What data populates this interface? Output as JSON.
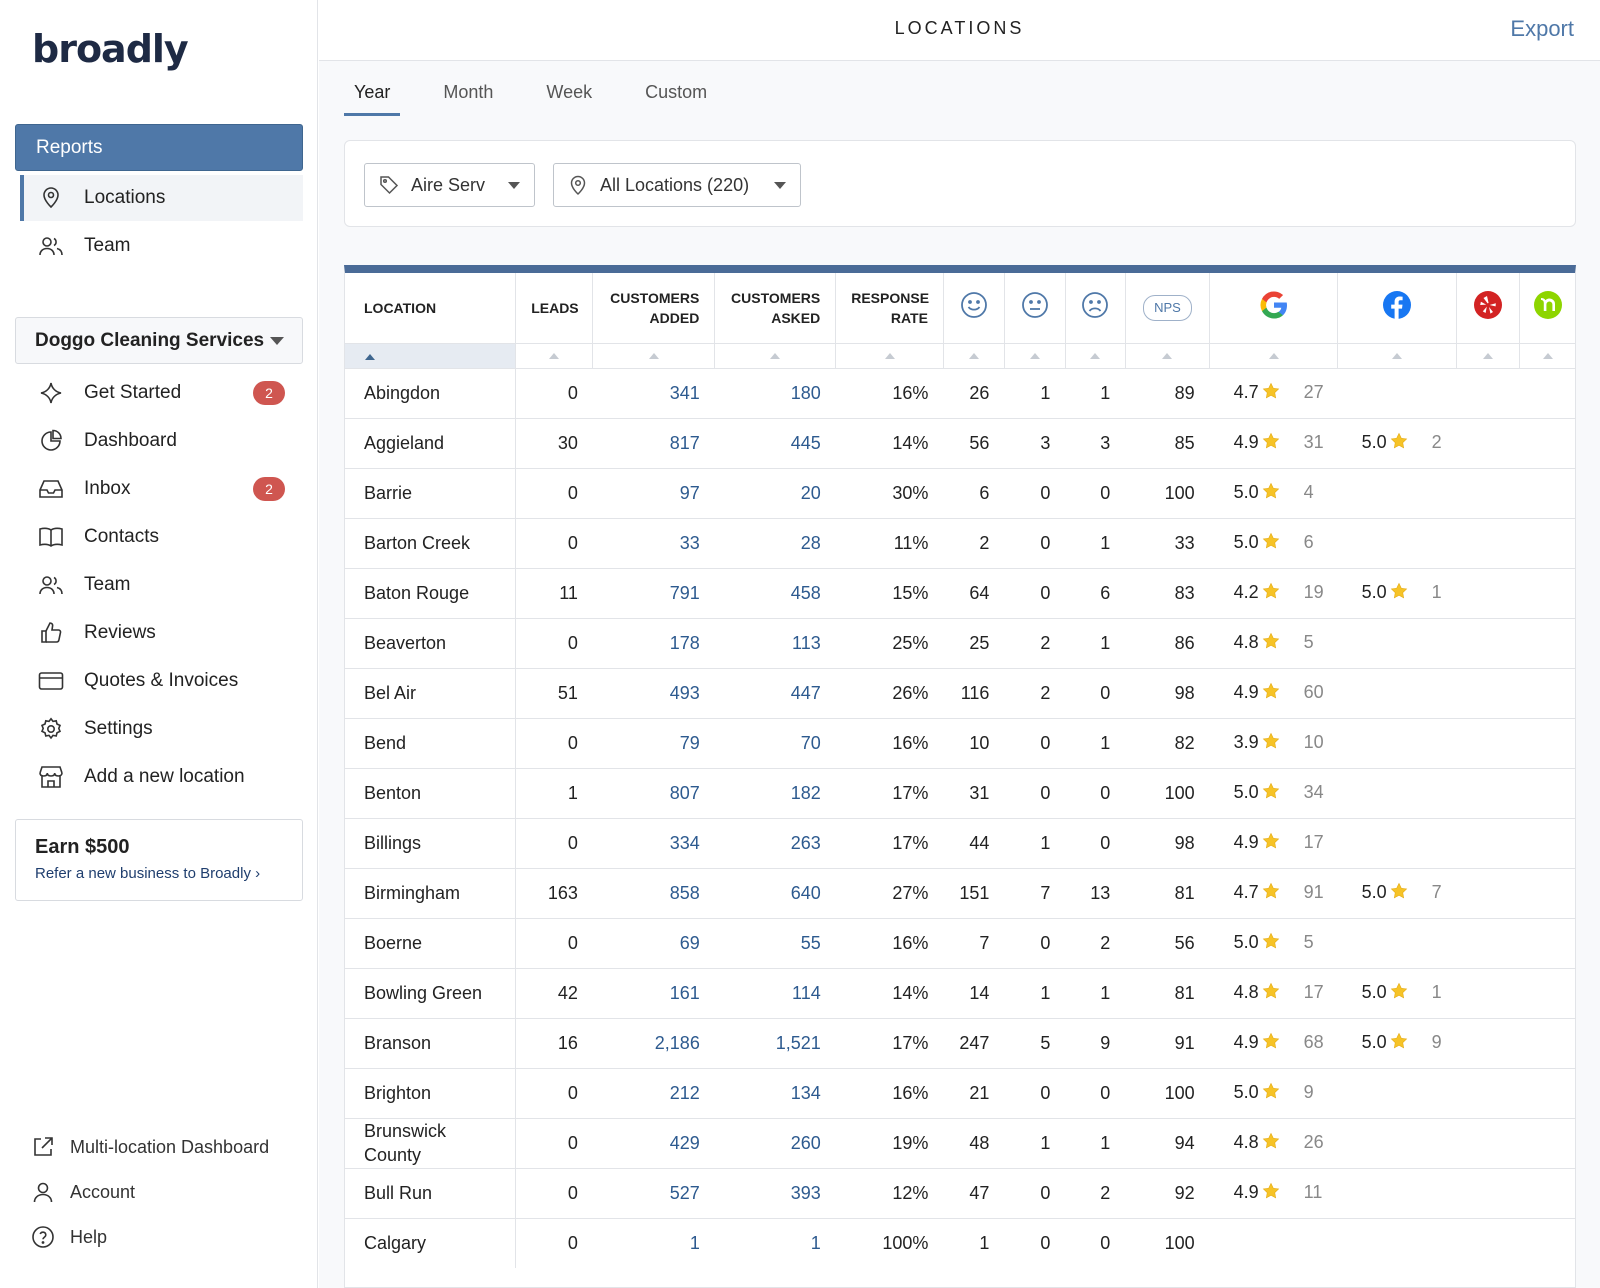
{
  "brand": {
    "name": "broadly"
  },
  "sidebar": {
    "reports_label": "Reports",
    "report_items": [
      {
        "label": "Locations",
        "icon": "location-pin-icon",
        "active": true
      },
      {
        "label": "Team",
        "icon": "team-icon",
        "active": false
      }
    ],
    "business_select": "Doggo Cleaning Services",
    "nav": [
      {
        "label": "Get Started",
        "icon": "sparkle-icon",
        "badge": "2"
      },
      {
        "label": "Dashboard",
        "icon": "pie-chart-icon",
        "badge": ""
      },
      {
        "label": "Inbox",
        "icon": "inbox-icon",
        "badge": "2"
      },
      {
        "label": "Contacts",
        "icon": "book-icon",
        "badge": ""
      },
      {
        "label": "Team",
        "icon": "team-icon",
        "badge": ""
      },
      {
        "label": "Reviews",
        "icon": "thumbs-up-icon",
        "badge": ""
      },
      {
        "label": "Quotes & Invoices",
        "icon": "credit-card-icon",
        "badge": ""
      },
      {
        "label": "Settings",
        "icon": "gear-icon",
        "badge": ""
      },
      {
        "label": "Add a new location",
        "icon": "store-icon",
        "badge": ""
      }
    ],
    "earn": {
      "title": "Earn $500",
      "link": "Refer a new business to Broadly"
    },
    "footer": [
      {
        "label": "Multi-location Dashboard",
        "icon": "external-link-icon"
      },
      {
        "label": "Account",
        "icon": "user-icon"
      },
      {
        "label": "Help",
        "icon": "help-icon"
      }
    ]
  },
  "header": {
    "title": "LOCATIONS",
    "export_label": "Export"
  },
  "tabs": [
    {
      "label": "Year",
      "active": true
    },
    {
      "label": "Month",
      "active": false
    },
    {
      "label": "Week",
      "active": false
    },
    {
      "label": "Custom",
      "active": false
    }
  ],
  "filters": {
    "brand": {
      "value": "Aire Serv",
      "icon": "tag-icon"
    },
    "locations": {
      "value": "All Locations (220)",
      "icon": "location-pin-icon"
    }
  },
  "table": {
    "columns": {
      "location": "LOCATION",
      "leads": "LEADS",
      "customers_added": "CUSTOMERS ADDED",
      "customers_asked": "CUSTOMERS ASKED",
      "response_rate": "RESPONSE RATE",
      "nps": "NPS"
    },
    "sort": {
      "column": "location",
      "direction": "ascending"
    },
    "rows": [
      {
        "location": "Abingdon",
        "leads": "0",
        "added": "341",
        "asked": "180",
        "rate": "16%",
        "happy": "26",
        "neutral": "1",
        "sad": "1",
        "nps": "89",
        "google": {
          "rating": "4.7",
          "count": "27"
        },
        "facebook": null
      },
      {
        "location": "Aggieland",
        "leads": "30",
        "added": "817",
        "asked": "445",
        "rate": "14%",
        "happy": "56",
        "neutral": "3",
        "sad": "3",
        "nps": "85",
        "google": {
          "rating": "4.9",
          "count": "31"
        },
        "facebook": {
          "rating": "5.0",
          "count": "2"
        }
      },
      {
        "location": "Barrie",
        "leads": "0",
        "added": "97",
        "asked": "20",
        "rate": "30%",
        "happy": "6",
        "neutral": "0",
        "sad": "0",
        "nps": "100",
        "google": {
          "rating": "5.0",
          "count": "4"
        },
        "facebook": null
      },
      {
        "location": "Barton Creek",
        "leads": "0",
        "added": "33",
        "asked": "28",
        "rate": "11%",
        "happy": "2",
        "neutral": "0",
        "sad": "1",
        "nps": "33",
        "google": {
          "rating": "5.0",
          "count": "6"
        },
        "facebook": null
      },
      {
        "location": "Baton Rouge",
        "leads": "11",
        "added": "791",
        "asked": "458",
        "rate": "15%",
        "happy": "64",
        "neutral": "0",
        "sad": "6",
        "nps": "83",
        "google": {
          "rating": "4.2",
          "count": "19"
        },
        "facebook": {
          "rating": "5.0",
          "count": "1"
        }
      },
      {
        "location": "Beaverton",
        "leads": "0",
        "added": "178",
        "asked": "113",
        "rate": "25%",
        "happy": "25",
        "neutral": "2",
        "sad": "1",
        "nps": "86",
        "google": {
          "rating": "4.8",
          "count": "5"
        },
        "facebook": null
      },
      {
        "location": "Bel Air",
        "leads": "51",
        "added": "493",
        "asked": "447",
        "rate": "26%",
        "happy": "116",
        "neutral": "2",
        "sad": "0",
        "nps": "98",
        "google": {
          "rating": "4.9",
          "count": "60"
        },
        "facebook": null
      },
      {
        "location": "Bend",
        "leads": "0",
        "added": "79",
        "asked": "70",
        "rate": "16%",
        "happy": "10",
        "neutral": "0",
        "sad": "1",
        "nps": "82",
        "google": {
          "rating": "3.9",
          "count": "10"
        },
        "facebook": null
      },
      {
        "location": "Benton",
        "leads": "1",
        "added": "807",
        "asked": "182",
        "rate": "17%",
        "happy": "31",
        "neutral": "0",
        "sad": "0",
        "nps": "100",
        "google": {
          "rating": "5.0",
          "count": "34"
        },
        "facebook": null
      },
      {
        "location": "Billings",
        "leads": "0",
        "added": "334",
        "asked": "263",
        "rate": "17%",
        "happy": "44",
        "neutral": "1",
        "sad": "0",
        "nps": "98",
        "google": {
          "rating": "4.9",
          "count": "17"
        },
        "facebook": null
      },
      {
        "location": "Birmingham",
        "leads": "163",
        "added": "858",
        "asked": "640",
        "rate": "27%",
        "happy": "151",
        "neutral": "7",
        "sad": "13",
        "nps": "81",
        "google": {
          "rating": "4.7",
          "count": "91"
        },
        "facebook": {
          "rating": "5.0",
          "count": "7"
        }
      },
      {
        "location": "Boerne",
        "leads": "0",
        "added": "69",
        "asked": "55",
        "rate": "16%",
        "happy": "7",
        "neutral": "0",
        "sad": "2",
        "nps": "56",
        "google": {
          "rating": "5.0",
          "count": "5"
        },
        "facebook": null
      },
      {
        "location": "Bowling Green",
        "leads": "42",
        "added": "161",
        "asked": "114",
        "rate": "14%",
        "happy": "14",
        "neutral": "1",
        "sad": "1",
        "nps": "81",
        "google": {
          "rating": "4.8",
          "count": "17"
        },
        "facebook": {
          "rating": "5.0",
          "count": "1"
        }
      },
      {
        "location": "Branson",
        "leads": "16",
        "added": "2,186",
        "asked": "1,521",
        "rate": "17%",
        "happy": "247",
        "neutral": "5",
        "sad": "9",
        "nps": "91",
        "google": {
          "rating": "4.9",
          "count": "68"
        },
        "facebook": {
          "rating": "5.0",
          "count": "9"
        }
      },
      {
        "location": "Brighton",
        "leads": "0",
        "added": "212",
        "asked": "134",
        "rate": "16%",
        "happy": "21",
        "neutral": "0",
        "sad": "0",
        "nps": "100",
        "google": {
          "rating": "5.0",
          "count": "9"
        },
        "facebook": null
      },
      {
        "location": "Brunswick County",
        "leads": "0",
        "added": "429",
        "asked": "260",
        "rate": "19%",
        "happy": "48",
        "neutral": "1",
        "sad": "1",
        "nps": "94",
        "google": {
          "rating": "4.8",
          "count": "26"
        },
        "facebook": null
      },
      {
        "location": "Bull Run",
        "leads": "0",
        "added": "527",
        "asked": "393",
        "rate": "12%",
        "happy": "47",
        "neutral": "0",
        "sad": "2",
        "nps": "92",
        "google": {
          "rating": "4.9",
          "count": "11"
        },
        "facebook": null
      },
      {
        "location": "Calgary",
        "leads": "0",
        "added": "1",
        "asked": "1",
        "rate": "100%",
        "happy": "1",
        "neutral": "0",
        "sad": "0",
        "nps": "100",
        "google": null,
        "facebook": null
      }
    ]
  },
  "colors": {
    "accent": "#4f78a8",
    "link": "#2d5a8f",
    "badge": "#cf5650",
    "star": "#f6c327",
    "google_blue": "#4285f4",
    "facebook": "#1877f2",
    "yelp": "#d32323",
    "nextdoor": "#8ed500"
  }
}
